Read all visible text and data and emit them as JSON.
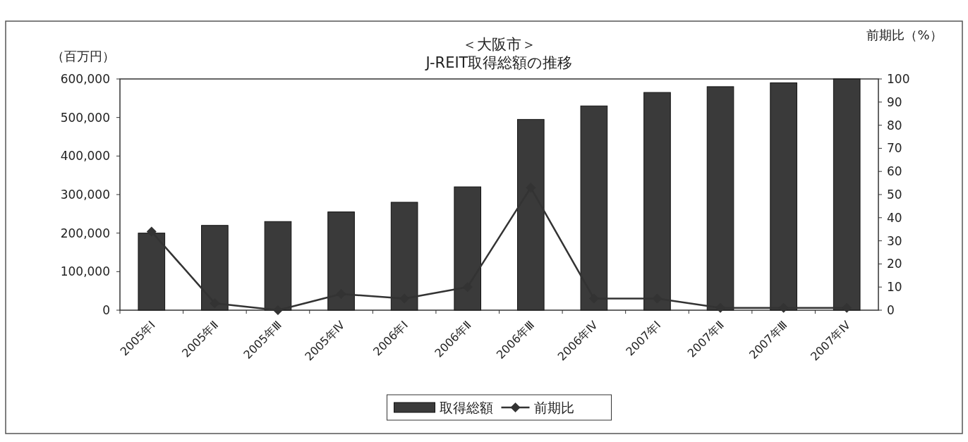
{
  "chart_data": {
    "type": "bar",
    "title": "＜大阪市＞",
    "subtitle": "J-REIT取得総額の推移",
    "ylabel": "（百万円）",
    "y2label": "前期比（%）",
    "categories": [
      "2005年Ⅰ",
      "2005年Ⅱ",
      "2005年Ⅲ",
      "2005年Ⅳ",
      "2006年Ⅰ",
      "2006年Ⅱ",
      "2006年Ⅲ",
      "2006年Ⅳ",
      "2007年Ⅰ",
      "2007年Ⅱ",
      "2007年Ⅲ",
      "2007年Ⅳ"
    ],
    "series": [
      {
        "name": "取得総額",
        "color": "#3a3a3a",
        "values": [
          200000,
          220000,
          230000,
          255000,
          280000,
          320000,
          495000,
          530000,
          565000,
          580000,
          590000,
          600000
        ]
      },
      {
        "name": "前期比",
        "type": "line",
        "axis": "y2",
        "color": "#333333",
        "marker": "diamond",
        "values": [
          34,
          3,
          0,
          7,
          5,
          10,
          53,
          5,
          5,
          1,
          1,
          1
        ]
      }
    ],
    "ylim": [
      0,
      600000
    ],
    "yticks": [
      {
        "value": 0,
        "label": "0"
      },
      {
        "value": 100000,
        "label": "100,000"
      },
      {
        "value": 200000,
        "label": "200,000"
      },
      {
        "value": 300000,
        "label": "300,000"
      },
      {
        "value": 400000,
        "label": "400,000"
      },
      {
        "value": 500000,
        "label": "500,000"
      },
      {
        "value": 600000,
        "label": "600,000"
      }
    ],
    "y2lim": [
      0,
      100
    ],
    "y2ticks": [
      0,
      10,
      20,
      30,
      40,
      50,
      60,
      70,
      80,
      90,
      100
    ],
    "grid": false,
    "legend": "bottom"
  }
}
